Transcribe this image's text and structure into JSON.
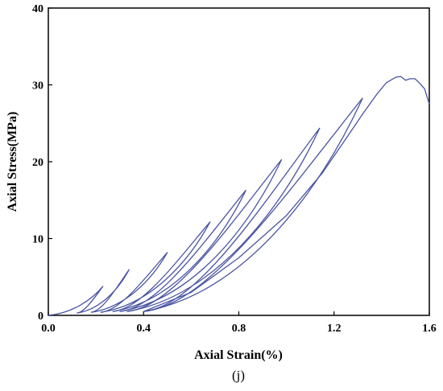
{
  "chart_data": {
    "type": "line",
    "xlabel": "Axial Strain(%)",
    "ylabel": "Axial Stress(MPa)",
    "xlim": [
      0.0,
      1.6
    ],
    "ylim": [
      0,
      40
    ],
    "xticks": [
      "0.0",
      "0.4",
      "0.8",
      "1.2",
      "1.6"
    ],
    "xtick_values": [
      0.0,
      0.4,
      0.8,
      1.2,
      1.6
    ],
    "yticks": [
      "0",
      "10",
      "20",
      "30",
      "40"
    ],
    "ytick_values": [
      0,
      10,
      20,
      30,
      40
    ],
    "grid": false,
    "legend": "none",
    "annotation": "(j)",
    "line_color": "#4a55a2",
    "loops": [
      {
        "start": [
          0.0,
          0.0
        ],
        "peak": [
          0.23,
          3.8
        ],
        "end": [
          0.12,
          0.3
        ]
      },
      {
        "start": [
          0.12,
          0.3
        ],
        "peak": [
          0.34,
          6.0
        ],
        "end": [
          0.18,
          0.4
        ]
      },
      {
        "start": [
          0.18,
          0.4
        ],
        "peak": [
          0.5,
          8.2
        ],
        "end": [
          0.22,
          0.4
        ]
      },
      {
        "start": [
          0.22,
          0.4
        ],
        "peak": [
          0.68,
          12.2
        ],
        "end": [
          0.27,
          0.5
        ]
      },
      {
        "start": [
          0.27,
          0.5
        ],
        "peak": [
          0.83,
          16.3
        ],
        "end": [
          0.3,
          0.5
        ]
      },
      {
        "start": [
          0.3,
          0.5
        ],
        "peak": [
          0.98,
          20.3
        ],
        "end": [
          0.33,
          0.5
        ]
      },
      {
        "start": [
          0.33,
          0.5
        ],
        "peak": [
          1.14,
          24.4
        ],
        "end": [
          0.4,
          0.5
        ]
      },
      {
        "start": [
          0.4,
          0.5
        ],
        "peak": [
          1.32,
          28.3
        ],
        "end": [
          0.4,
          0.5
        ]
      }
    ],
    "envelope": [
      [
        0.4,
        0.5
      ],
      [
        0.6,
        3.0
      ],
      [
        0.8,
        7.5
      ],
      [
        1.0,
        13.0
      ],
      [
        1.15,
        18.5
      ],
      [
        1.25,
        23.0
      ],
      [
        1.32,
        26.2
      ],
      [
        1.38,
        28.8
      ],
      [
        1.42,
        30.3
      ],
      [
        1.46,
        31.0
      ],
      [
        1.48,
        31.1
      ],
      [
        1.5,
        30.6
      ],
      [
        1.52,
        30.8
      ],
      [
        1.54,
        30.8
      ],
      [
        1.56,
        30.2
      ],
      [
        1.58,
        29.5
      ],
      [
        1.6,
        27.5
      ]
    ]
  }
}
